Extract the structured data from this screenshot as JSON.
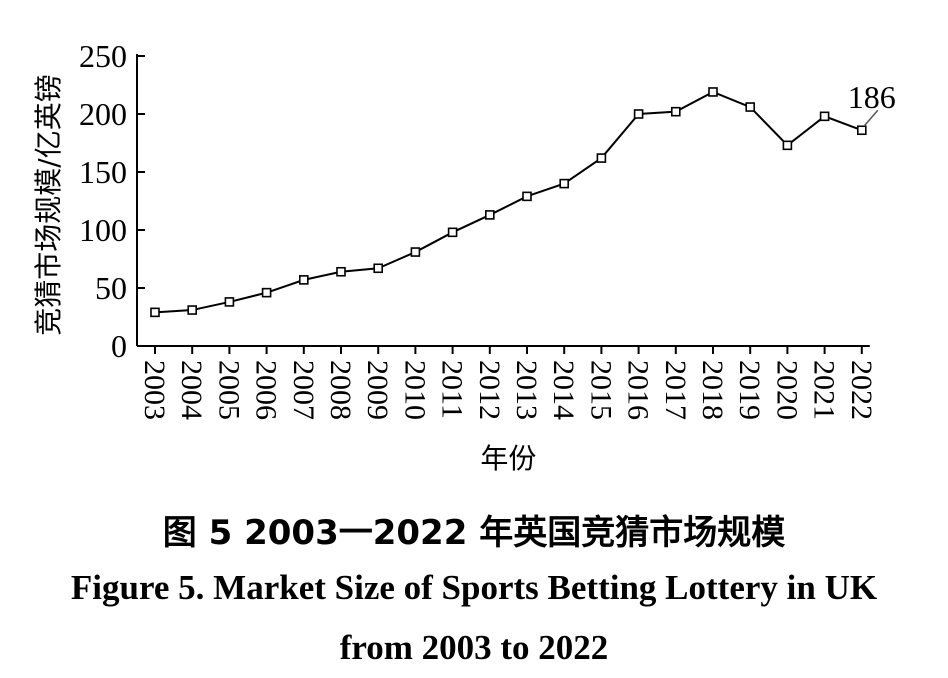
{
  "chart_data": {
    "type": "line",
    "x": [
      "2003",
      "2004",
      "2005",
      "2006",
      "2007",
      "2008",
      "2009",
      "2010",
      "2011",
      "2012",
      "2013",
      "2014",
      "2015",
      "2016",
      "2017",
      "2018",
      "2019",
      "2020",
      "2021",
      "2022"
    ],
    "series": [
      {
        "values": [
          29,
          31,
          38,
          46,
          57,
          64,
          67,
          81,
          98,
          113,
          129,
          140,
          162,
          200,
          202,
          219,
          206,
          173,
          198,
          186
        ]
      }
    ],
    "ylabel": "竞猜市场规模/亿英镑",
    "xlabel": "年份",
    "ylim": [
      0,
      250
    ],
    "yticks": [
      0,
      50,
      100,
      150,
      200,
      250
    ],
    "annotations": [
      {
        "x": "2022",
        "text": "186"
      }
    ],
    "grid": false,
    "legend": "none",
    "line_color": "#000000",
    "marker": "hollow-square"
  },
  "caption": {
    "chinese": "图 5   2003一2022 年英国竞猜市场规模",
    "english_line1": "Figure 5.    Market Size of Sports Betting Lottery in UK",
    "english_line2": "from 2003 to 2022"
  }
}
